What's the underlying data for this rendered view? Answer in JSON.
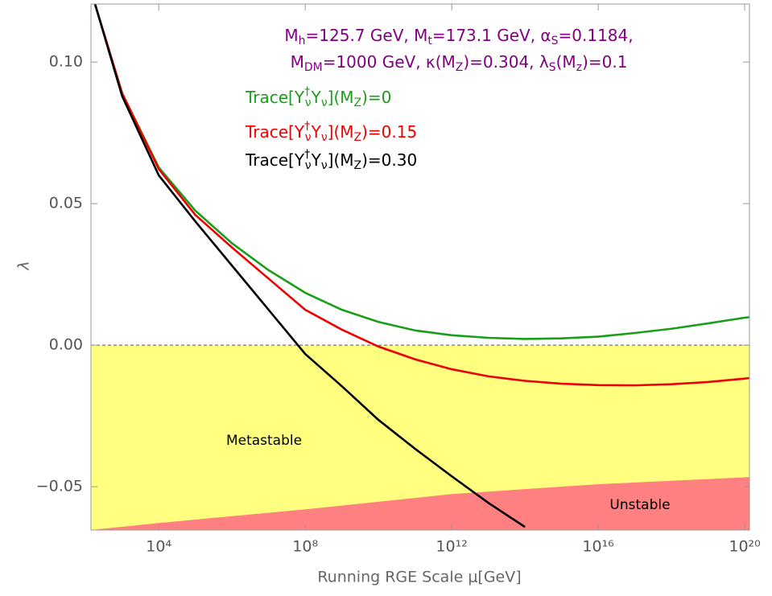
{
  "chart_data": {
    "type": "line",
    "x_label": "Running RGE Scale μ[GeV]",
    "y_label": "λ",
    "xlog": true,
    "xlim": [
      141,
      1.35e+20
    ],
    "ylim": [
      -0.0653,
      0.1205
    ],
    "xticks": [
      {
        "value": 10000.0,
        "label": "10⁴"
      },
      {
        "value": 100000000.0,
        "label": "10⁸"
      },
      {
        "value": 1000000000000.0,
        "label": "10¹²"
      },
      {
        "value": 1e+16,
        "label": "10¹⁶"
      },
      {
        "value": 1e+20,
        "label": "10²⁰"
      }
    ],
    "yticks": [
      {
        "value": -0.05,
        "label": "−0.05"
      },
      {
        "value": 0,
        "label": "0.00"
      },
      {
        "value": 0.05,
        "label": "0.05"
      },
      {
        "value": 0.1,
        "label": "0.10"
      }
    ],
    "annotations": [
      {
        "color": "#800080",
        "text": [
          "M",
          {
            "sub": "h"
          },
          "=125.7 GeV, M",
          {
            "sub": "t"
          },
          "=173.1 GeV, α",
          {
            "sub": "S"
          },
          "=0.1184,"
        ]
      },
      {
        "color": "#800080",
        "text": [
          "M",
          {
            "sub": "DM"
          },
          "=1000 GeV, κ(M",
          {
            "sub": "Z"
          },
          ")=0.304, λ",
          {
            "sub": "S"
          },
          "(M",
          {
            "sub": "z"
          },
          ")=0.1"
        ]
      }
    ],
    "regions": [
      {
        "name": "Metastable",
        "color": "#ffff80",
        "upper": 0
      },
      {
        "name": "Unstable",
        "color": "#ff8080",
        "x": [
          141,
          10000.0,
          100000000.0,
          1000000000000.0,
          1e+16,
          1.35e+20
        ],
        "upper": [
          -0.0653,
          -0.0628,
          -0.058,
          -0.0526,
          -0.0491,
          -0.0466
        ]
      }
    ],
    "x": [
      182,
      1000.0,
      10000.0,
      100000.0,
      1000000.0,
      10000000.0,
      100000000.0,
      1000000000.0,
      10000000000.0,
      100000000000.0,
      1000000000000.0,
      10000000000000.0,
      100000000000000.0,
      1000000000000000.0,
      1e+16,
      1e+17,
      1e+18,
      1e+19,
      1e+20,
      1.35e+20
    ],
    "series": [
      {
        "name": [
          "Trace[Y",
          {
            "sup": "†",
            "sub": "ν"
          },
          "Y",
          {
            "sub": "ν"
          },
          "](M",
          {
            "sub": "Z"
          },
          ")=0"
        ],
        "color": "#1a9e1a",
        "values": [
          0.1205,
          0.089,
          0.0628,
          0.0475,
          0.036,
          0.0265,
          0.0185,
          0.0125,
          0.0082,
          0.0052,
          0.0035,
          0.0026,
          0.0022,
          0.0024,
          0.003,
          0.0043,
          0.0058,
          0.0077,
          0.0097,
          0.0099
        ]
      },
      {
        "name": [
          "Trace[Y",
          {
            "sup": "†",
            "sub": "ν"
          },
          "Y",
          {
            "sub": "ν"
          },
          "](M",
          {
            "sub": "Z"
          },
          ")=0.15"
        ],
        "color": "#ee0000",
        "values": [
          0.1205,
          0.089,
          0.0622,
          0.046,
          0.0345,
          0.0235,
          0.0125,
          0.0055,
          -0.0005,
          -0.005,
          -0.0085,
          -0.011,
          -0.0126,
          -0.0136,
          -0.0141,
          -0.0142,
          -0.0138,
          -0.013,
          -0.0118,
          -0.0116
        ]
      },
      {
        "name": [
          "Trace[Y",
          {
            "sup": "†",
            "sub": "ν"
          },
          "Y",
          {
            "sub": "ν"
          },
          "](M",
          {
            "sub": "Z"
          },
          ")=0.30"
        ],
        "color": "#000000",
        "values": [
          0.1205,
          0.088,
          0.06,
          0.0437,
          0.0281,
          0.0125,
          -0.0031,
          -0.0145,
          -0.0264,
          -0.0366,
          -0.0463,
          -0.0557,
          -0.0642,
          null,
          null,
          null,
          null,
          null,
          null,
          null
        ]
      }
    ]
  }
}
